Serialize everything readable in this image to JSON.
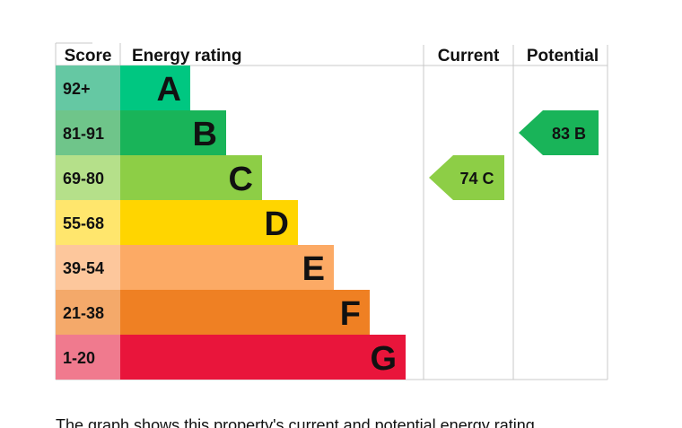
{
  "chart_data": {
    "type": "table",
    "headers": {
      "score": "Score",
      "rating": "Energy rating",
      "current": "Current",
      "potential": "Potential"
    },
    "bands": [
      {
        "score": "92+",
        "letter": "A",
        "color": "#00c781",
        "score_bg": "#65c8a3"
      },
      {
        "score": "81-91",
        "letter": "B",
        "color": "#19b459",
        "score_bg": "#6fc58a"
      },
      {
        "score": "69-80",
        "letter": "C",
        "color": "#8dce46",
        "score_bg": "#b5e08a"
      },
      {
        "score": "55-68",
        "letter": "D",
        "color": "#ffd500",
        "score_bg": "#ffe66d"
      },
      {
        "score": "39-54",
        "letter": "E",
        "color": "#fcaa65",
        "score_bg": "#fdc79c"
      },
      {
        "score": "21-38",
        "letter": "F",
        "color": "#ef8023",
        "score_bg": "#f4a96a"
      },
      {
        "score": "1-20",
        "letter": "G",
        "color": "#e9153b",
        "score_bg": "#f07a8e"
      }
    ],
    "current": {
      "value": 74,
      "band": "C",
      "label": "74 C",
      "color": "#8dce46"
    },
    "potential": {
      "value": 83,
      "band": "B",
      "label": "83 B",
      "color": "#19b459"
    }
  },
  "caption": "The graph shows this property's current and potential energy rating."
}
